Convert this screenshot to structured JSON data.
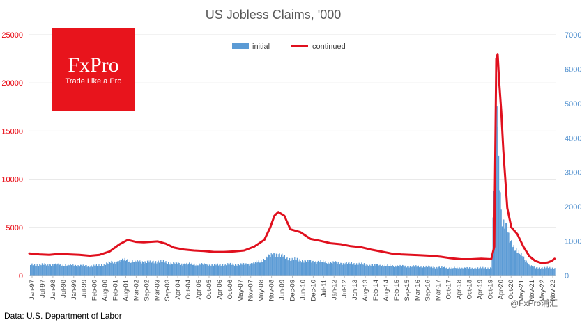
{
  "chart_data": {
    "type": "area",
    "title": "US Jobless Claims, '000",
    "left_axis": {
      "ticks": [
        "0",
        "5000",
        "10000",
        "15000",
        "20000",
        "25000"
      ],
      "range": [
        0,
        25000
      ],
      "color": "#e8000b"
    },
    "right_axis": {
      "ticks": [
        "0",
        "1000",
        "2000",
        "3000",
        "4000",
        "5000",
        "6000",
        "7000"
      ],
      "range": [
        0,
        7000
      ],
      "color": "#4f8fce"
    },
    "x_range": [
      1997.0,
      2023.2
    ],
    "x_tick_labels": [
      "Jan-97",
      "Jul-97",
      "Jan-98",
      "Jul-98",
      "Jan-99",
      "Jul-99",
      "Feb-00",
      "Aug-00",
      "Feb-01",
      "Aug-01",
      "Mar-02",
      "Sep-02",
      "Mar-03",
      "Sep-03",
      "Apr-04",
      "Oct-04",
      "Apr-05",
      "Oct-05",
      "Apr-06",
      "Oct-06",
      "May-07",
      "Nov-07",
      "May-08",
      "Nov-08",
      "Jun-09",
      "Dec-09",
      "Jun-10",
      "Dec-10",
      "Jul-11",
      "Jan-12",
      "Jul-12",
      "Jan-13",
      "Aug-13",
      "Feb-14",
      "Aug-14",
      "Feb-15",
      "Sep-15",
      "Mar-16",
      "Sep-16",
      "Mar-17",
      "Oct-17",
      "Apr-18",
      "Oct-18",
      "Apr-19",
      "Oct-19",
      "Apr-20",
      "Oct-20",
      "May-21",
      "Nov-21",
      "May-22",
      "Nov-22"
    ],
    "legend_position": "top",
    "series": [
      {
        "name": "initial",
        "style": "bars",
        "axis": "right",
        "color": "#5b9bd5",
        "x": [
          1997.0,
          1998.0,
          1999.0,
          2000.0,
          2000.5,
          2001.0,
          2001.5,
          2001.8,
          2002.0,
          2003.0,
          2003.5,
          2004.0,
          2005.0,
          2006.0,
          2007.0,
          2008.0,
          2008.5,
          2008.9,
          2009.2,
          2009.6,
          2010.0,
          2011.0,
          2012.0,
          2013.0,
          2014.0,
          2015.0,
          2016.0,
          2017.0,
          2018.0,
          2019.0,
          2020.0,
          2020.2,
          2020.25,
          2020.3,
          2020.4,
          2020.5,
          2020.7,
          2020.9,
          2021.1,
          2021.3,
          2021.6,
          2021.9,
          2022.2,
          2022.5,
          2022.9,
          2023.15
        ],
        "y": [
          310,
          320,
          300,
          280,
          290,
          380,
          420,
          460,
          410,
          400,
          410,
          360,
          330,
          310,
          320,
          340,
          410,
          540,
          650,
          560,
          470,
          410,
          380,
          350,
          310,
          280,
          270,
          250,
          220,
          220,
          220,
          4300,
          6100,
          4200,
          2800,
          1700,
          1450,
          1000,
          850,
          700,
          500,
          300,
          220,
          230,
          220,
          210
        ]
      },
      {
        "name": "continued",
        "style": "line",
        "axis": "left",
        "color": "#e0101e",
        "x": [
          1997.0,
          1997.5,
          1998.0,
          1998.5,
          1999.0,
          1999.5,
          2000.0,
          2000.5,
          2001.0,
          2001.5,
          2001.9,
          2002.3,
          2002.7,
          2003.0,
          2003.4,
          2003.8,
          2004.2,
          2004.7,
          2005.2,
          2005.7,
          2006.2,
          2006.7,
          2007.2,
          2007.7,
          2008.2,
          2008.7,
          2009.0,
          2009.2,
          2009.4,
          2009.7,
          2010.0,
          2010.5,
          2011.0,
          2011.5,
          2012.0,
          2012.5,
          2013.0,
          2013.5,
          2014.0,
          2014.5,
          2015.0,
          2015.5,
          2016.0,
          2016.5,
          2017.0,
          2017.5,
          2018.0,
          2018.5,
          2019.0,
          2019.5,
          2020.0,
          2020.15,
          2020.25,
          2020.32,
          2020.4,
          2020.5,
          2020.6,
          2020.8,
          2021.0,
          2021.3,
          2021.6,
          2021.9,
          2022.2,
          2022.5,
          2022.8,
          2023.0,
          2023.15
        ],
        "y": [
          2300,
          2200,
          2150,
          2250,
          2200,
          2150,
          2050,
          2150,
          2500,
          3250,
          3700,
          3500,
          3450,
          3500,
          3550,
          3300,
          2900,
          2700,
          2600,
          2550,
          2450,
          2450,
          2500,
          2600,
          3000,
          3700,
          5000,
          6200,
          6600,
          6200,
          4800,
          4500,
          3800,
          3600,
          3350,
          3250,
          3050,
          2950,
          2700,
          2500,
          2300,
          2200,
          2150,
          2100,
          2050,
          1950,
          1800,
          1700,
          1700,
          1750,
          1700,
          3000,
          22500,
          23000,
          20000,
          17000,
          13000,
          7000,
          5000,
          4300,
          3000,
          2000,
          1500,
          1300,
          1350,
          1500,
          1750
        ]
      }
    ]
  },
  "source": "Data: U.S. Department of Labor",
  "brand": {
    "name": "FxPro",
    "tagline": "Trade Like a Pro",
    "color": "#e8141c"
  },
  "watermark": "@FxPro浦汇"
}
